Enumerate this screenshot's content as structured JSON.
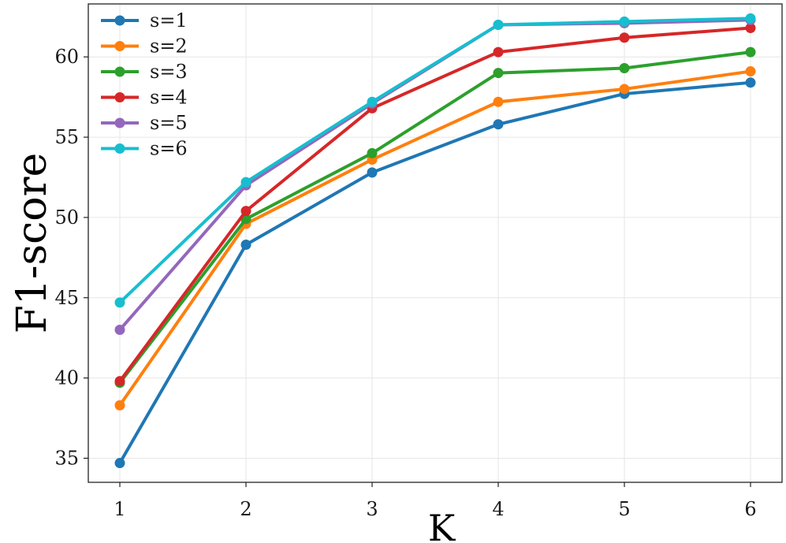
{
  "chart_data": {
    "type": "line",
    "title": "",
    "xlabel": "K",
    "ylabel": "F1-score",
    "x": [
      1,
      2,
      3,
      4,
      5,
      6
    ],
    "xticks": [
      "1",
      "2",
      "3",
      "4",
      "5",
      "6"
    ],
    "yticks": [
      "35",
      "40",
      "45",
      "50",
      "55",
      "60"
    ],
    "xlim": [
      0.75,
      6.25
    ],
    "ylim": [
      33.5,
      63.3
    ],
    "grid": true,
    "legend_position": "top-left",
    "series": [
      {
        "name": "s=1",
        "color": "#1f77b4",
        "values": [
          34.7,
          48.3,
          52.8,
          55.8,
          57.7,
          58.4
        ]
      },
      {
        "name": "s=2",
        "color": "#ff7f0e",
        "values": [
          38.3,
          49.6,
          53.6,
          57.2,
          58.0,
          59.1
        ]
      },
      {
        "name": "s=3",
        "color": "#2ca02c",
        "values": [
          39.7,
          49.9,
          54.0,
          59.0,
          59.3,
          60.3
        ]
      },
      {
        "name": "s=4",
        "color": "#d62728",
        "values": [
          39.8,
          50.4,
          56.8,
          60.3,
          61.2,
          61.8
        ]
      },
      {
        "name": "s=5",
        "color": "#9467bd",
        "values": [
          43.0,
          52.0,
          57.1,
          62.0,
          62.1,
          62.3
        ]
      },
      {
        "name": "s=6",
        "color": "#17becf",
        "values": [
          44.7,
          52.2,
          57.2,
          62.0,
          62.2,
          62.4
        ]
      }
    ]
  }
}
